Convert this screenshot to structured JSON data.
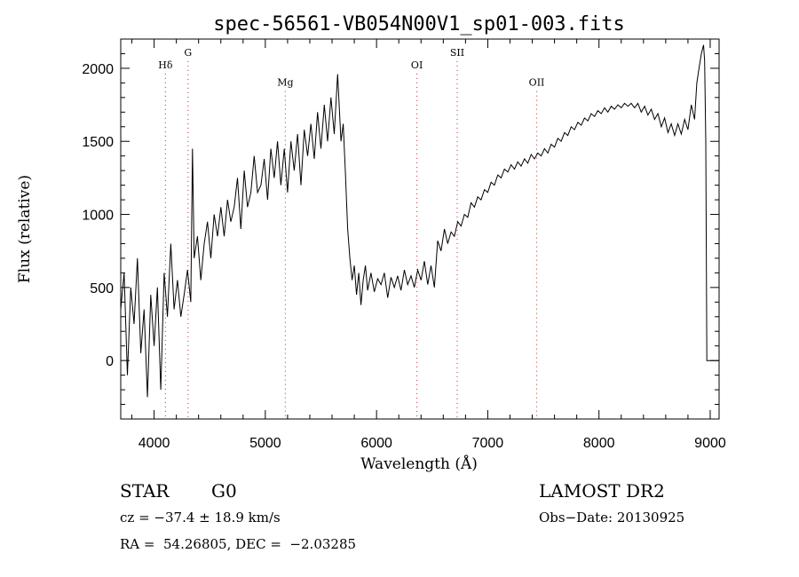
{
  "chart_data": {
    "type": "line",
    "title": "spec-56561-VB054N00V1_sp01-003.fits",
    "xlabel": "Wavelength (Å)",
    "ylabel": "Flux (relative)",
    "xlim": [
      3700,
      9080
    ],
    "ylim": [
      -400,
      2200
    ],
    "xticks": [
      4000,
      5000,
      6000,
      7000,
      8000,
      9000
    ],
    "yticks": [
      0,
      500,
      1000,
      1500,
      2000
    ],
    "grid": false,
    "series": [
      {
        "points": [
          [
            3700,
            350
          ],
          [
            3730,
            600
          ],
          [
            3760,
            -100
          ],
          [
            3790,
            500
          ],
          [
            3820,
            250
          ],
          [
            3850,
            700
          ],
          [
            3880,
            50
          ],
          [
            3910,
            350
          ],
          [
            3940,
            -250
          ],
          [
            3970,
            450
          ],
          [
            4000,
            100
          ],
          [
            4030,
            500
          ],
          [
            4060,
            -200
          ],
          [
            4090,
            600
          ],
          [
            4120,
            300
          ],
          [
            4150,
            800
          ],
          [
            4180,
            350
          ],
          [
            4210,
            550
          ],
          [
            4240,
            300
          ],
          [
            4270,
            450
          ],
          [
            4300,
            620
          ],
          [
            4330,
            400
          ],
          [
            4345,
            1450
          ],
          [
            4360,
            700
          ],
          [
            4390,
            850
          ],
          [
            4420,
            550
          ],
          [
            4450,
            800
          ],
          [
            4480,
            950
          ],
          [
            4510,
            700
          ],
          [
            4540,
            1000
          ],
          [
            4570,
            850
          ],
          [
            4600,
            1050
          ],
          [
            4630,
            850
          ],
          [
            4660,
            1100
          ],
          [
            4690,
            950
          ],
          [
            4720,
            1050
          ],
          [
            4750,
            1250
          ],
          [
            4780,
            900
          ],
          [
            4810,
            1300
          ],
          [
            4840,
            1050
          ],
          [
            4870,
            1150
          ],
          [
            4900,
            1400
          ],
          [
            4930,
            1150
          ],
          [
            4960,
            1200
          ],
          [
            4990,
            1380
          ],
          [
            5020,
            1100
          ],
          [
            5050,
            1450
          ],
          [
            5080,
            1250
          ],
          [
            5110,
            1500
          ],
          [
            5140,
            1200
          ],
          [
            5170,
            1450
          ],
          [
            5200,
            1150
          ],
          [
            5230,
            1500
          ],
          [
            5260,
            1300
          ],
          [
            5290,
            1550
          ],
          [
            5320,
            1200
          ],
          [
            5350,
            1580
          ],
          [
            5380,
            1400
          ],
          [
            5410,
            1620
          ],
          [
            5440,
            1380
          ],
          [
            5470,
            1700
          ],
          [
            5500,
            1450
          ],
          [
            5530,
            1750
          ],
          [
            5560,
            1500
          ],
          [
            5590,
            1800
          ],
          [
            5620,
            1550
          ],
          [
            5650,
            1960
          ],
          [
            5680,
            1500
          ],
          [
            5700,
            1620
          ],
          [
            5720,
            1280
          ],
          [
            5740,
            900
          ],
          [
            5760,
            700
          ],
          [
            5780,
            550
          ],
          [
            5800,
            650
          ],
          [
            5820,
            450
          ],
          [
            5840,
            600
          ],
          [
            5860,
            380
          ],
          [
            5880,
            550
          ],
          [
            5900,
            650
          ],
          [
            5920,
            480
          ],
          [
            5950,
            600
          ],
          [
            5980,
            470
          ],
          [
            6010,
            560
          ],
          [
            6040,
            520
          ],
          [
            6070,
            600
          ],
          [
            6100,
            430
          ],
          [
            6130,
            570
          ],
          [
            6160,
            500
          ],
          [
            6190,
            580
          ],
          [
            6220,
            480
          ],
          [
            6250,
            620
          ],
          [
            6280,
            520
          ],
          [
            6310,
            580
          ],
          [
            6340,
            500
          ],
          [
            6370,
            620
          ],
          [
            6400,
            550
          ],
          [
            6430,
            680
          ],
          [
            6460,
            520
          ],
          [
            6490,
            650
          ],
          [
            6520,
            500
          ],
          [
            6550,
            820
          ],
          [
            6580,
            750
          ],
          [
            6610,
            900
          ],
          [
            6640,
            800
          ],
          [
            6670,
            880
          ],
          [
            6700,
            850
          ],
          [
            6730,
            950
          ],
          [
            6760,
            920
          ],
          [
            6790,
            1000
          ],
          [
            6820,
            980
          ],
          [
            6850,
            1080
          ],
          [
            6880,
            1050
          ],
          [
            6910,
            1120
          ],
          [
            6940,
            1100
          ],
          [
            6970,
            1170
          ],
          [
            7000,
            1150
          ],
          [
            7030,
            1220
          ],
          [
            7060,
            1200
          ],
          [
            7090,
            1270
          ],
          [
            7120,
            1250
          ],
          [
            7150,
            1310
          ],
          [
            7180,
            1290
          ],
          [
            7210,
            1340
          ],
          [
            7240,
            1310
          ],
          [
            7270,
            1360
          ],
          [
            7300,
            1330
          ],
          [
            7330,
            1380
          ],
          [
            7360,
            1350
          ],
          [
            7390,
            1410
          ],
          [
            7420,
            1380
          ],
          [
            7450,
            1420
          ],
          [
            7480,
            1400
          ],
          [
            7510,
            1450
          ],
          [
            7540,
            1420
          ],
          [
            7570,
            1480
          ],
          [
            7600,
            1460
          ],
          [
            7630,
            1520
          ],
          [
            7660,
            1500
          ],
          [
            7690,
            1560
          ],
          [
            7720,
            1540
          ],
          [
            7750,
            1600
          ],
          [
            7780,
            1580
          ],
          [
            7810,
            1630
          ],
          [
            7840,
            1610
          ],
          [
            7870,
            1660
          ],
          [
            7900,
            1640
          ],
          [
            7930,
            1690
          ],
          [
            7960,
            1670
          ],
          [
            7990,
            1710
          ],
          [
            8020,
            1690
          ],
          [
            8050,
            1730
          ],
          [
            8080,
            1700
          ],
          [
            8110,
            1740
          ],
          [
            8140,
            1720
          ],
          [
            8170,
            1750
          ],
          [
            8200,
            1730
          ],
          [
            8230,
            1760
          ],
          [
            8260,
            1740
          ],
          [
            8290,
            1760
          ],
          [
            8320,
            1730
          ],
          [
            8350,
            1760
          ],
          [
            8380,
            1700
          ],
          [
            8410,
            1740
          ],
          [
            8440,
            1680
          ],
          [
            8470,
            1720
          ],
          [
            8500,
            1650
          ],
          [
            8530,
            1690
          ],
          [
            8560,
            1600
          ],
          [
            8590,
            1660
          ],
          [
            8620,
            1560
          ],
          [
            8650,
            1620
          ],
          [
            8680,
            1540
          ],
          [
            8710,
            1620
          ],
          [
            8740,
            1550
          ],
          [
            8770,
            1650
          ],
          [
            8800,
            1580
          ],
          [
            8830,
            1750
          ],
          [
            8860,
            1650
          ],
          [
            8880,
            1900
          ],
          [
            8900,
            2000
          ],
          [
            8920,
            2100
          ],
          [
            8940,
            2160
          ],
          [
            8950,
            2050
          ],
          [
            8960,
            1500
          ],
          [
            8970,
            0
          ],
          [
            9080,
            0
          ]
        ]
      }
    ],
    "lines": [
      {
        "label": "Hδ",
        "x": 4102,
        "y": 2000
      },
      {
        "label": "G",
        "x": 4305,
        "y": 2085
      },
      {
        "label": "Mg",
        "x": 5180,
        "y": 1880
      },
      {
        "label": "OI",
        "x": 6363,
        "y": 2000
      },
      {
        "label": "SII",
        "x": 6725,
        "y": 2085
      },
      {
        "label": "OII",
        "x": 7440,
        "y": 1880
      }
    ],
    "line_color": "#d04040"
  },
  "info": {
    "object_class": "STAR",
    "subclass": "G0",
    "survey": "LAMOST DR2",
    "cz": "cz = −37.4 ± 18.9 km/s",
    "obs_date": "Obs−Date: 20130925",
    "coords": "RA =  54.26805, DEC =  −2.03285"
  }
}
